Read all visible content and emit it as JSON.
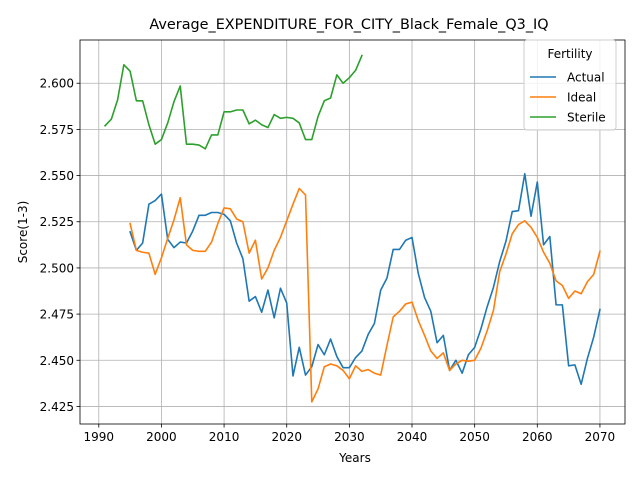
{
  "chart_data": {
    "type": "line",
    "title": "Average_EXPENDITURE_FOR_CITY_Black_Female_Q3_IQ",
    "xlabel": "Years",
    "ylabel": "Score(1-3)",
    "xlim": [
      1987,
      2074
    ],
    "ylim": [
      2.4155,
      2.6234
    ],
    "xticks": [
      1990,
      2000,
      2010,
      2020,
      2030,
      2040,
      2050,
      2060,
      2070
    ],
    "yticks": [
      2.425,
      2.45,
      2.475,
      2.5,
      2.525,
      2.55,
      2.575,
      2.6
    ],
    "ytick_labels": [
      "2.425",
      "2.450",
      "2.475",
      "2.500",
      "2.525",
      "2.550",
      "2.575",
      "2.600"
    ],
    "grid": true,
    "legend": {
      "title": "Fertility",
      "position": "top-right"
    },
    "series": [
      {
        "name": "Actual",
        "color": "#1f77b4",
        "x": [
          1995,
          1996,
          1997,
          1998,
          1999,
          2000,
          2001,
          2002,
          2003,
          2004,
          2005,
          2006,
          2007,
          2008,
          2009,
          2010,
          2011,
          2012,
          2013,
          2014,
          2015,
          2016,
          2017,
          2018,
          2019,
          2020,
          2021,
          2022,
          2023,
          2024,
          2025,
          2026,
          2027,
          2028,
          2029,
          2030,
          2031,
          2032,
          2033,
          2034,
          2035,
          2036,
          2037,
          2038,
          2039,
          2040,
          2041,
          2042,
          2043,
          2044,
          2045,
          2046,
          2047,
          2048,
          2049,
          2050,
          2051,
          2052,
          2053,
          2054,
          2055,
          2056,
          2057,
          2058,
          2059,
          2060,
          2061,
          2062,
          2063,
          2064,
          2065,
          2066,
          2067,
          2068,
          2069,
          2070
        ],
        "values": [
          2.5195,
          2.5095,
          2.5135,
          2.5345,
          2.5365,
          2.54,
          2.5155,
          2.511,
          2.514,
          2.5135,
          2.52,
          2.5285,
          2.5285,
          2.53,
          2.53,
          2.529,
          2.5255,
          2.5135,
          2.505,
          2.482,
          2.4845,
          2.476,
          2.488,
          2.473,
          2.489,
          2.481,
          2.4415,
          2.457,
          2.442,
          2.4465,
          2.4585,
          2.453,
          2.4615,
          2.452,
          2.446,
          2.446,
          2.4515,
          2.455,
          2.464,
          2.47,
          2.488,
          2.4945,
          2.51,
          2.51,
          2.515,
          2.5165,
          2.497,
          2.484,
          2.4765,
          2.4595,
          2.4635,
          2.4445,
          2.45,
          2.443,
          2.453,
          2.457,
          2.467,
          2.479,
          2.4895,
          2.5035,
          2.5145,
          2.5305,
          2.531,
          2.551,
          2.528,
          2.5465,
          2.5125,
          2.517,
          2.48,
          2.48,
          2.447,
          2.4475,
          2.437,
          2.451,
          2.4625,
          2.4775
        ]
      },
      {
        "name": "Ideal",
        "color": "#ff7f0e",
        "x": [
          1995,
          1996,
          1997,
          1998,
          1999,
          2000,
          2001,
          2002,
          2003,
          2004,
          2005,
          2006,
          2007,
          2008,
          2009,
          2010,
          2011,
          2012,
          2013,
          2014,
          2015,
          2016,
          2017,
          2018,
          2019,
          2020,
          2021,
          2022,
          2023,
          2024,
          2025,
          2026,
          2027,
          2028,
          2029,
          2030,
          2031,
          2032,
          2033,
          2034,
          2035,
          2036,
          2037,
          2038,
          2039,
          2040,
          2041,
          2042,
          2043,
          2044,
          2045,
          2046,
          2047,
          2048,
          2049,
          2050,
          2051,
          2052,
          2053,
          2054,
          2055,
          2056,
          2057,
          2058,
          2059,
          2060,
          2061,
          2062,
          2063,
          2064,
          2065,
          2066,
          2067,
          2068,
          2069,
          2070
        ],
        "values": [
          2.524,
          2.5095,
          2.5085,
          2.508,
          2.4965,
          2.5055,
          2.516,
          2.526,
          2.538,
          2.5125,
          2.5095,
          2.509,
          2.509,
          2.514,
          2.524,
          2.5325,
          2.532,
          2.5265,
          2.525,
          2.508,
          2.515,
          2.494,
          2.5,
          2.5095,
          2.5165,
          2.5255,
          2.5345,
          2.543,
          2.5395,
          2.4275,
          2.4345,
          2.4465,
          2.448,
          2.447,
          2.4445,
          2.44,
          2.447,
          2.444,
          2.445,
          2.443,
          2.442,
          2.458,
          2.4735,
          2.4765,
          2.4805,
          2.4815,
          2.4715,
          2.4635,
          2.455,
          2.451,
          2.454,
          2.4445,
          2.448,
          2.45,
          2.4495,
          2.45,
          2.4565,
          2.466,
          2.477,
          2.498,
          2.5075,
          2.5185,
          2.5235,
          2.5255,
          2.522,
          2.5165,
          2.5085,
          2.5025,
          2.493,
          2.4905,
          2.4835,
          2.4875,
          2.486,
          2.4925,
          2.4965,
          2.509
        ]
      },
      {
        "name": "Sterile",
        "color": "#2ca02c",
        "x": [
          1991,
          1992,
          1993,
          1994,
          1995,
          1996,
          1997,
          1998,
          1999,
          2000,
          2001,
          2002,
          2003,
          2004,
          2005,
          2006,
          2007,
          2008,
          2009,
          2010,
          2011,
          2012,
          2013,
          2014,
          2015,
          2016,
          2017,
          2018,
          2019,
          2020,
          2021,
          2022,
          2023,
          2024,
          2025,
          2026,
          2027,
          2028,
          2029,
          2030,
          2031,
          2032
        ],
        "values": [
          2.577,
          2.5805,
          2.591,
          2.61,
          2.6065,
          2.5905,
          2.5905,
          2.5775,
          2.567,
          2.5695,
          2.5785,
          2.59,
          2.5985,
          2.567,
          2.567,
          2.5665,
          2.5645,
          2.572,
          2.572,
          2.5845,
          2.5845,
          2.5855,
          2.5855,
          2.578,
          2.58,
          2.5775,
          2.576,
          2.583,
          2.581,
          2.5815,
          2.581,
          2.5785,
          2.5695,
          2.5695,
          2.582,
          2.5905,
          2.592,
          2.6045,
          2.6,
          2.603,
          2.607,
          2.615
        ]
      }
    ]
  }
}
